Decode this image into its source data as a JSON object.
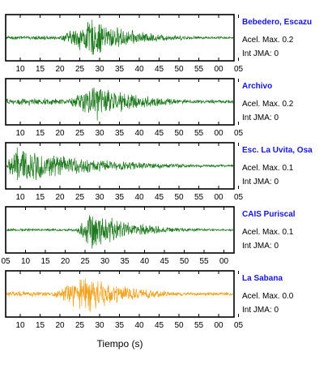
{
  "chart_data": {
    "type": "line",
    "xlabel": "Tiempo (s)",
    "panels": [
      {
        "name": "Bebedero, Escazu",
        "accel_label": "Acel. Max. 0.2",
        "jma_label": "Int JMA: 0",
        "color": "#1f7a1f",
        "tick_labels": [
          "10",
          "15",
          "20",
          "25",
          "30",
          "35",
          "40",
          "45",
          "50",
          "55",
          "00",
          "05"
        ],
        "onset": 0.22,
        "peak": 0.38,
        "amp": 1.0,
        "noise": 0.12
      },
      {
        "name": "Archivo",
        "accel_label": "Acel. Max. 0.2",
        "jma_label": "Int JMA: 0",
        "color": "#1f7a1f",
        "tick_labels": [
          "10",
          "15",
          "20",
          "25",
          "30",
          "35",
          "40",
          "45",
          "50",
          "55",
          "00",
          "05"
        ],
        "onset": 0.25,
        "peak": 0.4,
        "amp": 1.0,
        "noise": 0.2
      },
      {
        "name": "Esc. La Uvita, Osa",
        "accel_label": "Acel. Max. 0.1",
        "jma_label": "Int JMA: 0",
        "color": "#1f7a1f",
        "tick_labels": [
          "10",
          "15",
          "20",
          "25",
          "30",
          "35",
          "40",
          "45",
          "50",
          "55",
          "00",
          "05"
        ],
        "onset": 0.0,
        "peak": 0.03,
        "amp": 1.0,
        "noise": 0.05
      },
      {
        "name": "CAIS Puriscal",
        "accel_label": "Acel. Max. 0.1",
        "jma_label": "Int JMA: 0",
        "color": "#1f7a1f",
        "tick_labels": [
          "05",
          "10",
          "15",
          "20",
          "25",
          "30",
          "35",
          "40",
          "45",
          "50",
          "55",
          "00"
        ],
        "onset": 0.3,
        "peak": 0.38,
        "amp": 1.0,
        "noise": 0.08
      },
      {
        "name": "La Sabana",
        "accel_label": "Acel. Max. 0.0",
        "jma_label": "Int JMA: 0",
        "color": "#f0a21c",
        "tick_labels": [
          "10",
          "15",
          "20",
          "25",
          "30",
          "35",
          "40",
          "45",
          "50",
          "55",
          "00",
          "05"
        ],
        "onset": 0.18,
        "peak": 0.36,
        "amp": 1.0,
        "noise": 0.18
      }
    ]
  }
}
